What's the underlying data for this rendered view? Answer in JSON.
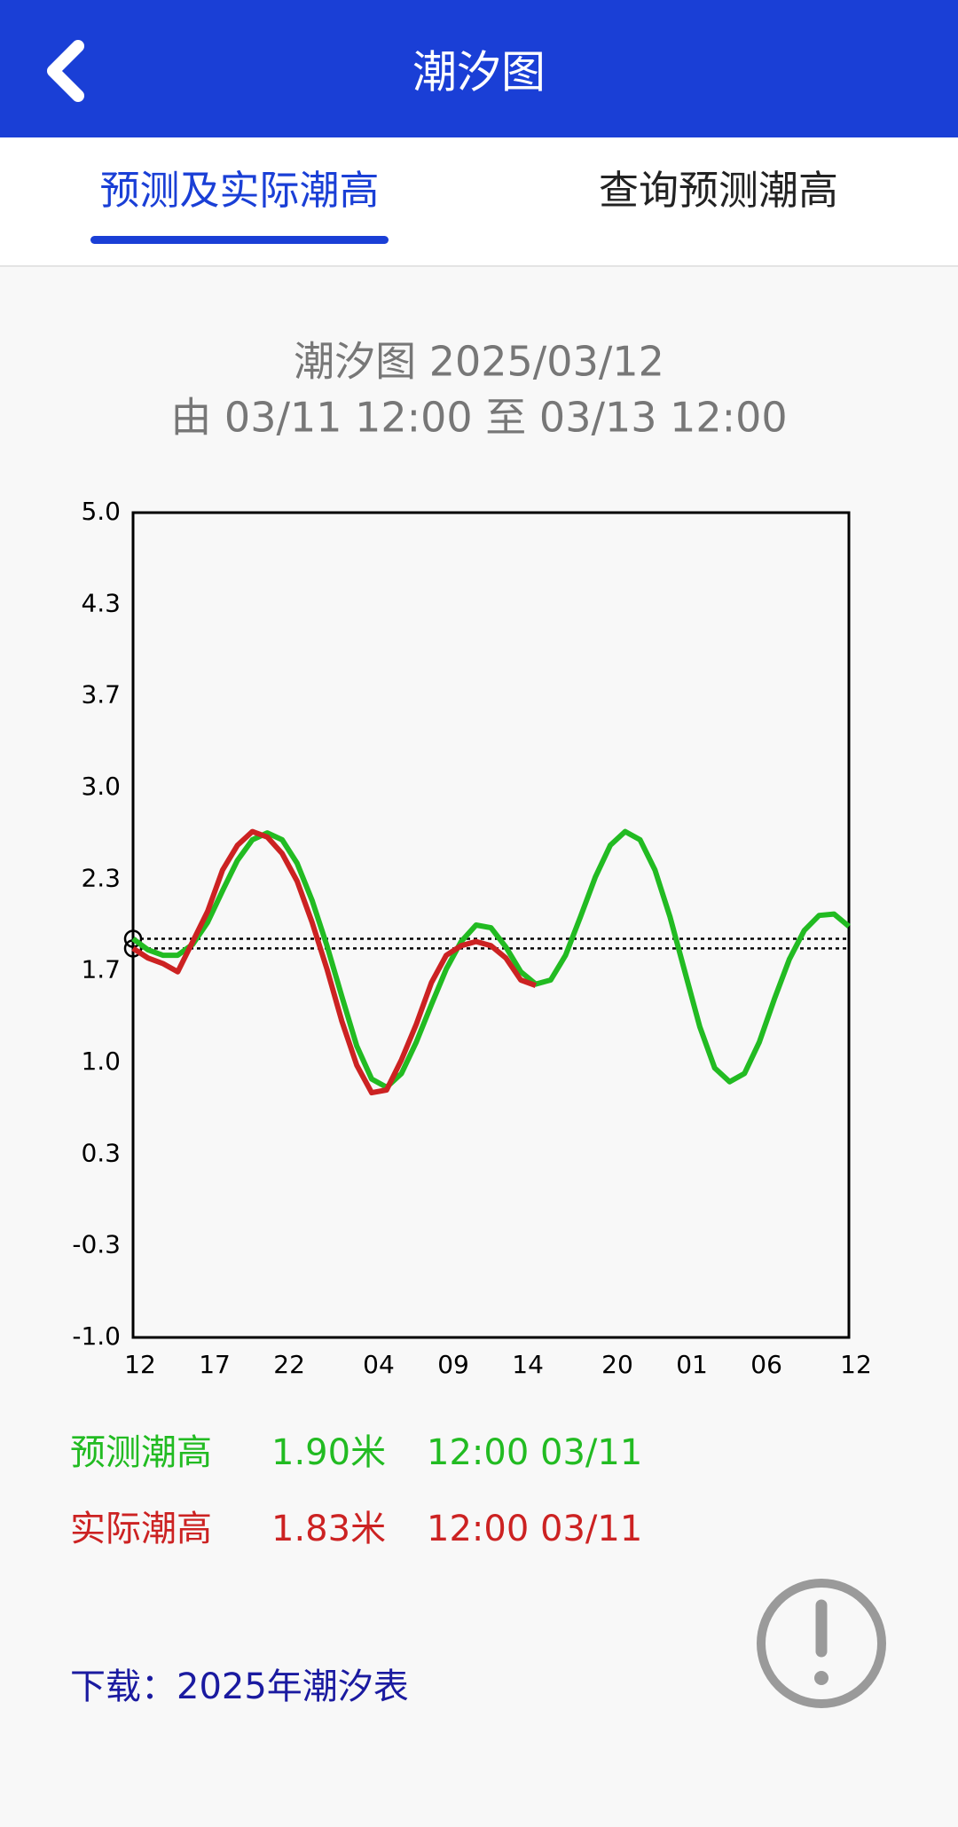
{
  "header": {
    "title": "潮汐图"
  },
  "tabs": [
    "预测及实际潮高",
    "查询预测潮高"
  ],
  "chart_data": {
    "type": "line",
    "title": "潮汐图  2025/03/12",
    "subtitle": "由  03/11 12:00  至  03/13 12:00",
    "x": [
      0,
      1,
      2,
      3,
      4,
      5,
      6,
      7,
      8,
      9,
      10,
      11,
      12,
      13,
      14,
      15,
      16,
      17,
      18,
      19,
      20,
      21,
      22,
      23,
      24,
      25,
      26,
      27,
      28,
      29,
      30,
      31,
      32,
      33,
      34,
      35,
      36,
      37,
      38,
      39,
      40,
      41,
      42,
      43,
      44,
      45,
      46,
      47,
      48
    ],
    "xlim": [
      0,
      48
    ],
    "xticks": [
      {
        "value": 0,
        "label": "12"
      },
      {
        "value": 5,
        "label": "17"
      },
      {
        "value": 10,
        "label": "22"
      },
      {
        "value": 16,
        "label": "04"
      },
      {
        "value": 21,
        "label": "09"
      },
      {
        "value": 26,
        "label": "14"
      },
      {
        "value": 32,
        "label": "20"
      },
      {
        "value": 37,
        "label": "01"
      },
      {
        "value": 42,
        "label": "06"
      },
      {
        "value": 48,
        "label": "12"
      }
    ],
    "ylim": [
      -1,
      5
    ],
    "yticks": [
      {
        "value": -1,
        "label": "-1.0"
      },
      {
        "value": -0.333,
        "label": "-0.3"
      },
      {
        "value": 0.333,
        "label": "0.3"
      },
      {
        "value": 1,
        "label": "1.0"
      },
      {
        "value": 1.667,
        "label": "1.7"
      },
      {
        "value": 2.333,
        "label": "2.3"
      },
      {
        "value": 3,
        "label": "3.0"
      },
      {
        "value": 3.667,
        "label": "3.7"
      },
      {
        "value": 4.333,
        "label": "4.3"
      },
      {
        "value": 5,
        "label": "5.0"
      }
    ],
    "series": [
      {
        "name": "预测潮高",
        "color": "#22bb22",
        "values": [
          1.9,
          1.82,
          1.78,
          1.78,
          1.86,
          2.02,
          2.25,
          2.47,
          2.62,
          2.67,
          2.62,
          2.45,
          2.18,
          1.85,
          1.48,
          1.12,
          0.88,
          0.82,
          0.92,
          1.15,
          1.42,
          1.68,
          1.88,
          2.0,
          1.98,
          1.84,
          1.66,
          1.57,
          1.6,
          1.78,
          2.06,
          2.35,
          2.58,
          2.68,
          2.62,
          2.4,
          2.06,
          1.66,
          1.26,
          0.96,
          0.86,
          0.92,
          1.15,
          1.46,
          1.75,
          1.96,
          2.07,
          2.08,
          1.99
        ]
      },
      {
        "name": "实际潮高",
        "color": "#cc2222",
        "values": [
          1.83,
          1.76,
          1.72,
          1.66,
          1.88,
          2.1,
          2.4,
          2.58,
          2.68,
          2.64,
          2.52,
          2.32,
          2.02,
          1.68,
          1.3,
          0.98,
          0.78,
          0.8,
          1.02,
          1.28,
          1.58,
          1.78,
          1.85,
          1.88,
          1.85,
          1.76,
          1.6,
          1.56,
          null,
          null,
          null,
          null,
          null,
          null,
          null,
          null,
          null,
          null,
          null,
          null,
          null,
          null,
          null,
          null,
          null,
          null,
          null,
          null,
          null
        ]
      }
    ],
    "readouts": [
      {
        "value": 1.9,
        "value_label": "1.90米",
        "time": "12:00 03/11"
      },
      {
        "value": 1.83,
        "value_label": "1.83米",
        "time": "12:00 03/11"
      }
    ]
  },
  "download": "下载：2025年潮汐表"
}
